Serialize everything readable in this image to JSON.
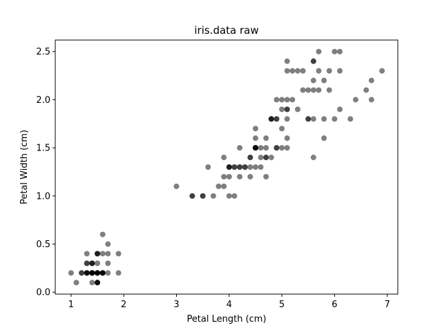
{
  "chart_data": {
    "type": "scatter",
    "title": "iris.data raw",
    "xlabel": "Petal Length (cm)",
    "ylabel": "Petal Width (cm)",
    "xlim": [
      0.7,
      7.2
    ],
    "ylim": [
      -0.02,
      2.62
    ],
    "xticks": [
      1,
      2,
      3,
      4,
      5,
      6,
      7
    ],
    "xtick_labels": [
      "1",
      "2",
      "3",
      "4",
      "5",
      "6",
      "7"
    ],
    "yticks": [
      0.0,
      0.5,
      1.0,
      1.5,
      2.0,
      2.5
    ],
    "ytick_labels": [
      "0.0",
      "0.5",
      "1.0",
      "1.5",
      "2.0",
      "2.5"
    ],
    "grid": false,
    "point_color": "#000000",
    "point_alpha": 0.5,
    "points": [
      [
        1.4,
        0.2
      ],
      [
        1.4,
        0.2
      ],
      [
        1.3,
        0.2
      ],
      [
        1.5,
        0.2
      ],
      [
        1.4,
        0.2
      ],
      [
        1.7,
        0.4
      ],
      [
        1.4,
        0.3
      ],
      [
        1.5,
        0.2
      ],
      [
        1.4,
        0.2
      ],
      [
        1.5,
        0.1
      ],
      [
        1.5,
        0.2
      ],
      [
        1.6,
        0.2
      ],
      [
        1.4,
        0.1
      ],
      [
        1.1,
        0.1
      ],
      [
        1.2,
        0.2
      ],
      [
        1.5,
        0.4
      ],
      [
        1.3,
        0.4
      ],
      [
        1.4,
        0.3
      ],
      [
        1.7,
        0.3
      ],
      [
        1.5,
        0.3
      ],
      [
        1.7,
        0.2
      ],
      [
        1.5,
        0.4
      ],
      [
        1.0,
        0.2
      ],
      [
        1.7,
        0.5
      ],
      [
        1.9,
        0.2
      ],
      [
        1.6,
        0.2
      ],
      [
        1.6,
        0.4
      ],
      [
        1.5,
        0.2
      ],
      [
        1.4,
        0.2
      ],
      [
        1.6,
        0.2
      ],
      [
        1.6,
        0.2
      ],
      [
        1.5,
        0.4
      ],
      [
        1.5,
        0.1
      ],
      [
        1.4,
        0.2
      ],
      [
        1.5,
        0.1
      ],
      [
        1.2,
        0.2
      ],
      [
        1.3,
        0.2
      ],
      [
        1.5,
        0.1
      ],
      [
        1.3,
        0.2
      ],
      [
        1.5,
        0.2
      ],
      [
        1.3,
        0.3
      ],
      [
        1.3,
        0.3
      ],
      [
        1.3,
        0.2
      ],
      [
        1.6,
        0.6
      ],
      [
        1.9,
        0.4
      ],
      [
        1.4,
        0.3
      ],
      [
        1.6,
        0.2
      ],
      [
        1.4,
        0.2
      ],
      [
        1.5,
        0.2
      ],
      [
        1.4,
        0.2
      ],
      [
        4.7,
        1.4
      ],
      [
        4.5,
        1.5
      ],
      [
        4.9,
        1.5
      ],
      [
        4.0,
        1.3
      ],
      [
        4.6,
        1.5
      ],
      [
        4.5,
        1.3
      ],
      [
        4.7,
        1.6
      ],
      [
        3.3,
        1.0
      ],
      [
        4.6,
        1.3
      ],
      [
        3.9,
        1.4
      ],
      [
        3.5,
        1.0
      ],
      [
        4.2,
        1.5
      ],
      [
        4.0,
        1.0
      ],
      [
        4.7,
        1.4
      ],
      [
        3.6,
        1.3
      ],
      [
        4.4,
        1.4
      ],
      [
        4.5,
        1.5
      ],
      [
        4.1,
        1.0
      ],
      [
        4.5,
        1.5
      ],
      [
        3.9,
        1.1
      ],
      [
        4.8,
        1.8
      ],
      [
        4.0,
        1.3
      ],
      [
        4.9,
        1.5
      ],
      [
        4.7,
        1.2
      ],
      [
        4.3,
        1.3
      ],
      [
        4.4,
        1.4
      ],
      [
        4.8,
        1.4
      ],
      [
        5.0,
        1.7
      ],
      [
        4.5,
        1.5
      ],
      [
        3.5,
        1.0
      ],
      [
        3.8,
        1.1
      ],
      [
        3.7,
        1.0
      ],
      [
        3.9,
        1.2
      ],
      [
        5.1,
        1.6
      ],
      [
        4.5,
        1.5
      ],
      [
        4.5,
        1.6
      ],
      [
        4.7,
        1.5
      ],
      [
        4.4,
        1.3
      ],
      [
        4.1,
        1.3
      ],
      [
        4.0,
        1.3
      ],
      [
        4.4,
        1.2
      ],
      [
        4.6,
        1.4
      ],
      [
        4.0,
        1.2
      ],
      [
        3.3,
        1.0
      ],
      [
        4.2,
        1.3
      ],
      [
        4.2,
        1.2
      ],
      [
        4.2,
        1.3
      ],
      [
        4.3,
        1.3
      ],
      [
        3.0,
        1.1
      ],
      [
        4.1,
        1.3
      ],
      [
        6.0,
        2.5
      ],
      [
        5.1,
        1.9
      ],
      [
        5.9,
        2.1
      ],
      [
        5.6,
        1.8
      ],
      [
        5.8,
        2.2
      ],
      [
        6.6,
        2.1
      ],
      [
        4.5,
        1.7
      ],
      [
        6.3,
        1.8
      ],
      [
        5.8,
        1.8
      ],
      [
        6.1,
        2.5
      ],
      [
        5.1,
        2.0
      ],
      [
        5.3,
        1.9
      ],
      [
        5.5,
        2.1
      ],
      [
        5.0,
        2.0
      ],
      [
        5.1,
        2.4
      ],
      [
        5.3,
        2.3
      ],
      [
        5.5,
        1.8
      ],
      [
        6.7,
        2.2
      ],
      [
        6.9,
        2.3
      ],
      [
        5.0,
        1.5
      ],
      [
        5.7,
        2.3
      ],
      [
        4.9,
        2.0
      ],
      [
        6.7,
        2.0
      ],
      [
        4.9,
        1.8
      ],
      [
        5.7,
        2.1
      ],
      [
        6.0,
        1.8
      ],
      [
        4.8,
        1.8
      ],
      [
        4.9,
        1.8
      ],
      [
        5.6,
        2.1
      ],
      [
        5.8,
        1.6
      ],
      [
        6.1,
        1.9
      ],
      [
        6.4,
        2.0
      ],
      [
        5.6,
        2.2
      ],
      [
        5.1,
        1.5
      ],
      [
        5.6,
        1.4
      ],
      [
        6.1,
        2.3
      ],
      [
        5.6,
        2.4
      ],
      [
        5.5,
        1.8
      ],
      [
        4.8,
        1.8
      ],
      [
        5.4,
        2.1
      ],
      [
        5.6,
        2.4
      ],
      [
        5.1,
        2.3
      ],
      [
        5.1,
        1.9
      ],
      [
        5.9,
        2.3
      ],
      [
        5.7,
        2.5
      ],
      [
        5.2,
        2.3
      ],
      [
        5.0,
        1.9
      ],
      [
        5.2,
        2.0
      ],
      [
        5.4,
        2.3
      ],
      [
        5.1,
        1.8
      ]
    ]
  }
}
